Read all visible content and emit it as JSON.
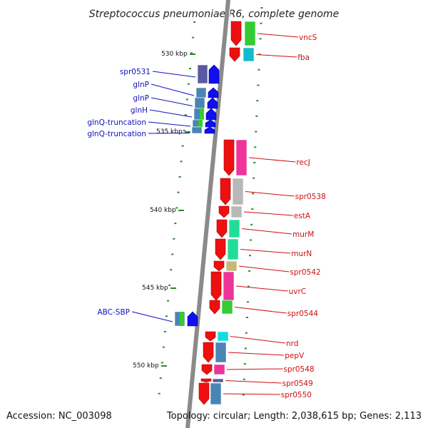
{
  "title": "Streptococcus pneumoniae R6, complete genome",
  "footer": {
    "accession": "Accession: NC_003098",
    "summary": "Topology: circular; Length: 2,038,615 bp; Genes: 2,113"
  },
  "scale_labels": [
    "530 kbp",
    "535 kbp",
    "540 kbp",
    "545 kbp",
    "550 kbp"
  ],
  "colors": {
    "backbone": "#8a8a8a",
    "tick": "#2a8a2a",
    "left_label": "#1010c0",
    "right_label": "#cc1010",
    "left_gene": "#0000ee",
    "right_gene": "#ee0000"
  },
  "genes_left": [
    {
      "label": "spr0531",
      "cog_color": "#5a5aa0",
      "arrow": "#1010ee"
    },
    {
      "label": "glnP",
      "cog_color": "#4a84b4",
      "arrow": "#1010ee"
    },
    {
      "label": "glnP",
      "cog_color": "#4a84b4",
      "arrow": "#1010ee"
    },
    {
      "label": "glnH",
      "cog_color": "#4a84b4",
      "arrow": "#1010ee"
    },
    {
      "label": "glnQ-truncation",
      "cog_color": "#4a84b4",
      "arrow": "#1010ee"
    },
    {
      "label": "glnQ-truncation",
      "cog_color": "#4a84b4",
      "arrow": "#1010ee"
    },
    {
      "label": "ABC-SBP",
      "cog_color": "#4a84b4",
      "arrow": "#1010ee"
    }
  ],
  "genes_right": [
    {
      "label": "vncS",
      "cog_color": "#33cc33",
      "arrow": "#ee1010"
    },
    {
      "label": "fba",
      "cog_color": "#11bbcc",
      "arrow": "#ee1010"
    },
    {
      "label": "recJ",
      "cog_color": "#ee3399",
      "arrow": "#ee1010"
    },
    {
      "label": "spr0538",
      "cog_color": "#b8b8b8",
      "arrow": "#ee1010"
    },
    {
      "label": "estA",
      "cog_color": "#b8b8b8",
      "arrow": "#ee1010"
    },
    {
      "label": "murM",
      "cog_color": "#22dd99",
      "arrow": "#ee1010"
    },
    {
      "label": "murN",
      "cog_color": "#22dd99",
      "arrow": "#ee1010"
    },
    {
      "label": "spr0542",
      "cog_color": "#c8b878",
      "arrow": "#ee1010"
    },
    {
      "label": "uvrC",
      "cog_color": "#ee3399",
      "arrow": "#ee1010"
    },
    {
      "label": "spr0544",
      "cog_color": "#33cc33",
      "arrow": "#ee1010"
    },
    {
      "label": "nrd",
      "cog_color": "#11dddd",
      "arrow": "#ee1010"
    },
    {
      "label": "pepV",
      "cog_color": "#4a84b4",
      "arrow": "#ee1010"
    },
    {
      "label": "spr0548",
      "cog_color": "#ee3399",
      "arrow": "#ee1010"
    },
    {
      "label": "spr0549",
      "cog_color": "#5a5aa0",
      "arrow": "#ee1010"
    },
    {
      "label": "spr0550",
      "cog_color": "#4a84b4",
      "arrow": "#ee1010"
    }
  ]
}
